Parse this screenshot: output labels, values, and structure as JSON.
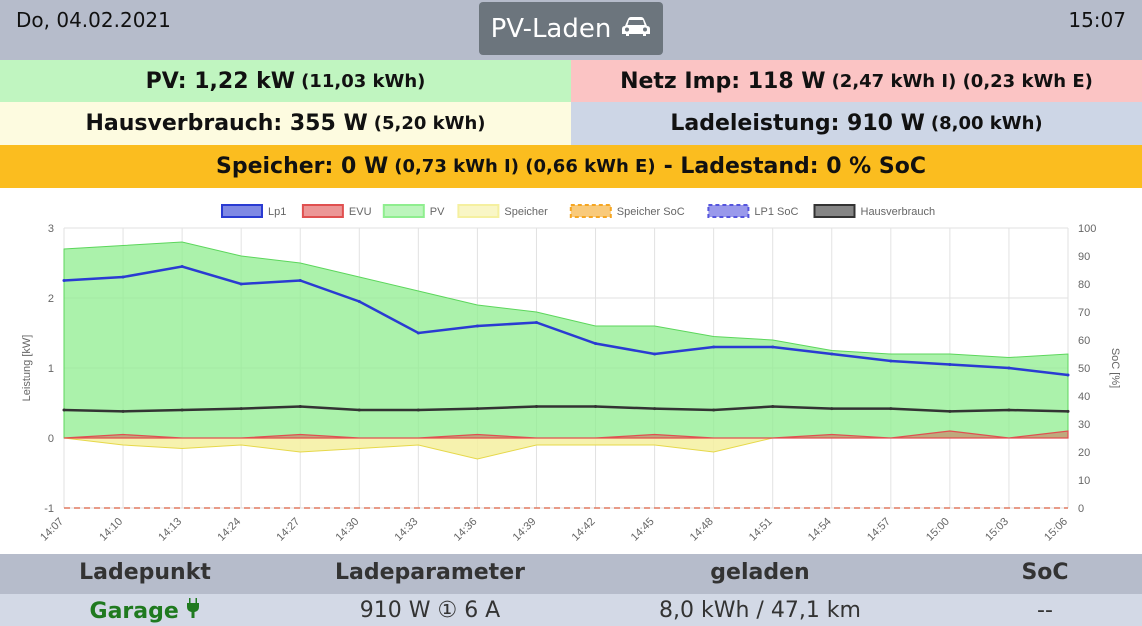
{
  "header": {
    "date": "Do, 04.02.2021",
    "time": "15:07",
    "mode_label": "PV-Laden",
    "mode_icon": "car-icon"
  },
  "summary": {
    "pv": {
      "label": "PV: 1,22 kW",
      "detail": "(11,03 kWh)"
    },
    "netz": {
      "label": "Netz Imp: 118 W",
      "detail": "(2,47 kWh I) (0,23 kWh E)"
    },
    "hausverbrauch": {
      "label": "Hausverbrauch: 355 W",
      "detail": "(5,20 kWh)"
    },
    "ladeleistung": {
      "label": "Ladeleistung: 910 W",
      "detail": "(8,00 kWh)"
    },
    "speicher": {
      "label": "Speicher: 0 W",
      "detail": "(0,73 kWh I) (0,66 kWh E)",
      "label2": "- Ladestand: 0 % SoC"
    }
  },
  "colors": {
    "lp1": "#2a3bd2",
    "evu": "#e05050",
    "pv": "#8fee8f",
    "speicher": "#f5f0a0",
    "speicher_soc": "#f5a623",
    "lp1_soc": "#5555dd",
    "hausverbrauch": "#333333"
  },
  "chart_data": {
    "type": "area",
    "x": [
      "14:07",
      "14:10",
      "14:13",
      "14:24",
      "14:27",
      "14:30",
      "14:33",
      "14:36",
      "14:39",
      "14:42",
      "14:45",
      "14:48",
      "14:51",
      "14:54",
      "14:57",
      "15:00",
      "15:03",
      "15:06"
    ],
    "ylabel": "Leistung [kW]",
    "ylabel_right": "SoC [%]",
    "ylim": [
      -1,
      3
    ],
    "yticks": [
      "3",
      "2",
      "1",
      "0",
      "-1"
    ],
    "ylim_right": [
      0,
      100
    ],
    "yticks_right": [
      "100",
      "90",
      "80",
      "70",
      "60",
      "50",
      "40",
      "30",
      "20",
      "10",
      "0"
    ],
    "legend_position": "top",
    "grid": true,
    "series": [
      {
        "name": "Lp1",
        "type": "line",
        "values": [
          2.25,
          2.3,
          2.45,
          2.2,
          2.25,
          1.95,
          1.5,
          1.6,
          1.65,
          1.35,
          1.2,
          1.3,
          1.3,
          1.2,
          1.1,
          1.05,
          1.0,
          0.9
        ]
      },
      {
        "name": "EVU",
        "type": "area",
        "values": [
          0.0,
          0.05,
          0.0,
          0.0,
          0.05,
          0.0,
          0.0,
          0.05,
          0.0,
          0.0,
          0.05,
          0.0,
          0.0,
          0.05,
          0.0,
          0.1,
          0.0,
          0.1
        ]
      },
      {
        "name": "PV",
        "type": "area",
        "values": [
          2.7,
          2.75,
          2.8,
          2.6,
          2.5,
          2.3,
          2.1,
          1.9,
          1.8,
          1.6,
          1.6,
          1.45,
          1.4,
          1.25,
          1.2,
          1.2,
          1.15,
          1.2
        ]
      },
      {
        "name": "Speicher",
        "type": "area",
        "values": [
          0.0,
          -0.1,
          -0.15,
          -0.1,
          -0.2,
          -0.15,
          -0.1,
          -0.3,
          -0.1,
          -0.1,
          -0.1,
          -0.2,
          0.0,
          0.0,
          0.0,
          0.0,
          0.0,
          0.0
        ]
      },
      {
        "name": "Speicher SoC",
        "type": "area",
        "values": [
          0,
          0,
          0,
          0,
          0,
          0,
          0,
          0,
          0,
          0,
          0,
          0,
          0,
          0,
          0,
          0,
          0,
          0
        ]
      },
      {
        "name": "LP1 SoC",
        "type": "line",
        "values": [
          0,
          0,
          0,
          0,
          0,
          0,
          0,
          0,
          0,
          0,
          0,
          0,
          0,
          0,
          0,
          0,
          0,
          0
        ]
      },
      {
        "name": "Hausverbrauch",
        "type": "line",
        "values": [
          0.4,
          0.38,
          0.4,
          0.42,
          0.45,
          0.4,
          0.4,
          0.42,
          0.45,
          0.45,
          0.42,
          0.4,
          0.45,
          0.42,
          0.42,
          0.38,
          0.4,
          0.38
        ]
      }
    ]
  },
  "table": {
    "headers": [
      "Ladepunkt",
      "Ladeparameter",
      "geladen",
      "SoC"
    ],
    "rows": [
      {
        "ladepunkt": "Garage",
        "ladepunkt_icon": "plug-icon",
        "ladeparameter": "910 W ① 6 A",
        "geladen": "8,0 kWh / 47,1 km",
        "soc": "--"
      }
    ]
  }
}
